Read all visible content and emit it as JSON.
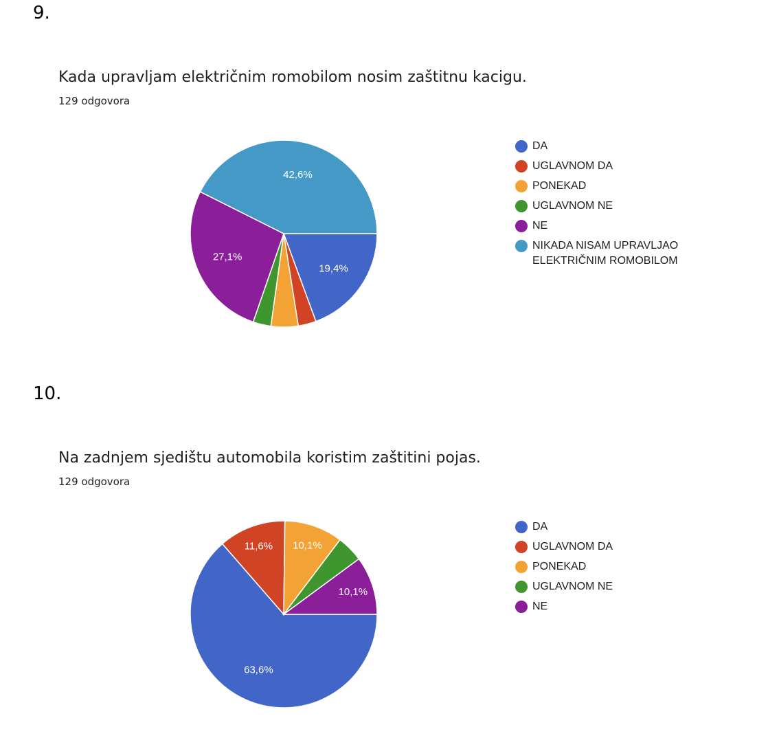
{
  "sections": [
    {
      "number": "9.",
      "question": "Kada upravljam električnim romobilom nosim zaštitnu kacigu.",
      "responses": "129 odgovora"
    },
    {
      "number": "10.",
      "question": "Na zadnjem sjedištu automobila koristim zaštitini pojas.",
      "responses": "129 odgovora"
    }
  ],
  "chart_data": [
    {
      "type": "pie",
      "categories": [
        "DA",
        "UGLAVNOM DA",
        "PONEKAD",
        "UGLAVNOM NE",
        "NE",
        "NIKADA NISAM UPRAVLJAO ELEKTRIČNIM ROMOBILOM"
      ],
      "values": [
        19.4,
        3.1,
        4.7,
        3.1,
        27.1,
        42.6
      ],
      "data_labels": [
        "19,4%",
        "",
        "",
        "",
        "27,1%",
        "42,6%"
      ],
      "colors": [
        "#4266c7",
        "#d04425",
        "#f3a335",
        "#3f962f",
        "#8a1f99",
        "#4599c6"
      ],
      "legend_position": "right"
    },
    {
      "type": "pie",
      "categories": [
        "DA",
        "UGLAVNOM DA",
        "PONEKAD",
        "UGLAVNOM NE",
        "NE"
      ],
      "values": [
        63.6,
        11.6,
        10.1,
        4.6,
        10.1
      ],
      "data_labels": [
        "63,6%",
        "11,6%",
        "10,1%",
        "",
        "10,1%"
      ],
      "colors": [
        "#4266c7",
        "#d04425",
        "#f3a335",
        "#3f962f",
        "#8a1f99"
      ],
      "legend_position": "right"
    }
  ]
}
